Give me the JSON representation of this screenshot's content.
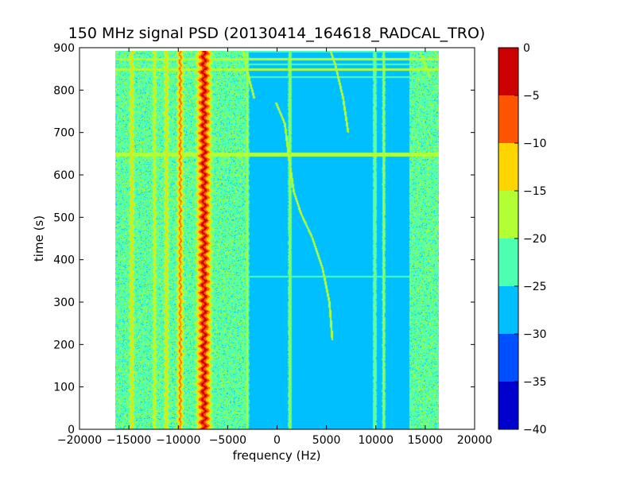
{
  "chart_data": {
    "type": "heatmap",
    "title": "150 MHz signal PSD (20130414_164618_RADCAL_TRO)",
    "xlabel": "frequency (Hz)",
    "ylabel": "time (s)",
    "xlim": [
      -20000,
      20000
    ],
    "ylim": [
      0,
      900
    ],
    "xticks": [
      -20000,
      -15000,
      -10000,
      -5000,
      0,
      5000,
      10000,
      15000,
      20000
    ],
    "yticks": [
      0,
      100,
      200,
      300,
      400,
      500,
      600,
      700,
      800,
      900
    ],
    "data_extent": {
      "x": [
        -16400,
        16400
      ],
      "y": [
        0,
        892
      ]
    },
    "colorbar": {
      "levels": [
        -40,
        -35,
        -30,
        -25,
        -20,
        -15,
        -10,
        -5,
        0
      ],
      "tick_labels": [
        "-40",
        "-35",
        "-30",
        "-25",
        "-20",
        "-15",
        "-10",
        "-5",
        "0"
      ],
      "colors": [
        "#0000cc",
        "#0050ff",
        "#00bfff",
        "#4dffb0",
        "#b2ff33",
        "#ffd500",
        "#ff5500",
        "#cc0000"
      ],
      "range": [
        -40,
        0
      ]
    },
    "background_level_dB": -27.5,
    "vertical_features": [
      {
        "name": "main-carrier",
        "freq_hz": -7400,
        "level_dB": -2,
        "width_hz": 320,
        "wobble_hz": 180
      },
      {
        "name": "carrier-halo-left",
        "freq_hz": -7900,
        "level_dB": -12,
        "width_hz": 250,
        "wobble_hz": 120
      },
      {
        "name": "carrier-halo-right",
        "freq_hz": -6900,
        "level_dB": -12,
        "width_hz": 250,
        "wobble_hz": 120
      },
      {
        "name": "sideband-1",
        "freq_hz": -9800,
        "level_dB": -8,
        "width_hz": 200,
        "wobble_hz": 90
      },
      {
        "name": "sideband-2",
        "freq_hz": -11200,
        "level_dB": -13,
        "width_hz": 200,
        "wobble_hz": 70
      },
      {
        "name": "sideband-3",
        "freq_hz": -12400,
        "level_dB": -14,
        "width_hz": 180,
        "wobble_hz": 60
      },
      {
        "name": "sideband-4",
        "freq_hz": -14700,
        "level_dB": -13,
        "width_hz": 200,
        "wobble_hz": 80
      },
      {
        "name": "line-minus-3000",
        "freq_hz": -3000,
        "level_dB": -17,
        "width_hz": 160,
        "wobble_hz": 20
      },
      {
        "name": "line-plus-1300",
        "freq_hz": 1300,
        "level_dB": -18,
        "width_hz": 180,
        "wobble_hz": 10
      },
      {
        "name": "line-plus-9900",
        "freq_hz": 9900,
        "level_dB": -18,
        "width_hz": 180,
        "wobble_hz": 10
      },
      {
        "name": "line-plus-10800",
        "freq_hz": 10800,
        "level_dB": -18,
        "width_hz": 160,
        "wobble_hz": 10
      }
    ],
    "noisy_bands": [
      {
        "from_hz": -16400,
        "to_hz": -3000,
        "level_dB": -22
      },
      {
        "from_hz": 13400,
        "to_hz": 16400,
        "level_dB": -22
      }
    ],
    "horizontal_features": [
      {
        "name": "burst-648s",
        "time_s": 648,
        "level_dB": -17,
        "thickness_s": 10
      },
      {
        "name": "burst-top-1",
        "time_s": 890,
        "level_dB": -22,
        "thickness_s": 4
      },
      {
        "name": "burst-top-2",
        "time_s": 873,
        "level_dB": -17,
        "thickness_s": 5
      },
      {
        "name": "burst-top-3",
        "time_s": 860,
        "level_dB": -22,
        "thickness_s": 4
      },
      {
        "name": "burst-top-4",
        "time_s": 848,
        "level_dB": -17,
        "thickness_s": 5
      },
      {
        "name": "burst-top-5",
        "time_s": 830,
        "level_dB": -22,
        "thickness_s": 4
      },
      {
        "name": "burst-360s",
        "time_s": 360,
        "level_dB": -23,
        "thickness_s": 3
      }
    ],
    "drifting_tracks": [
      {
        "name": "satellite-drift-main",
        "level_dB": -17,
        "points": [
          [
            5600,
            210
          ],
          [
            5300,
            300
          ],
          [
            4600,
            380
          ],
          [
            3600,
            450
          ],
          [
            2400,
            510
          ],
          [
            1700,
            560
          ],
          [
            1200,
            640
          ],
          [
            800,
            720
          ],
          [
            -100,
            770
          ]
        ]
      },
      {
        "name": "satellite-drift-upper",
        "level_dB": -18,
        "points": [
          [
            -2300,
            780
          ],
          [
            -3200,
            860
          ],
          [
            -3500,
            900
          ]
        ]
      },
      {
        "name": "satellite-drift-right",
        "level_dB": -19,
        "points": [
          [
            7200,
            700
          ],
          [
            6700,
            780
          ],
          [
            5900,
            860
          ],
          [
            5300,
            900
          ]
        ]
      },
      {
        "name": "satellite-drift-far-right",
        "level_dB": -19,
        "points": [
          [
            15500,
            830
          ],
          [
            14500,
            890
          ]
        ]
      }
    ]
  }
}
